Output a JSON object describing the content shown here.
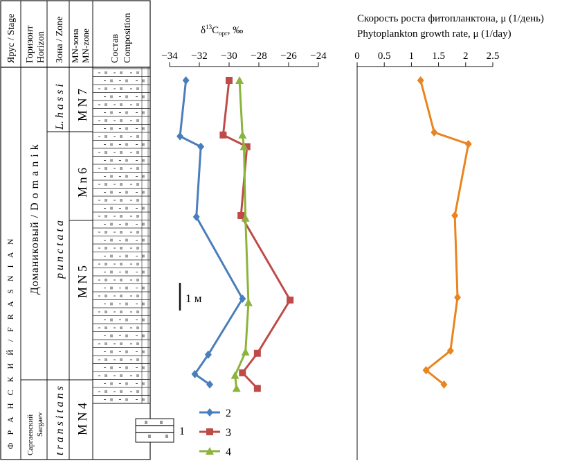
{
  "column_headers": {
    "stage": "Ярус / Stage",
    "horizon_ru": "Горизонт",
    "horizon_en": "Horizon",
    "zone": "Зона / Zone",
    "mnzone_ru": "MN-зона",
    "mnzone_en": "MN-zone",
    "composition_ru": "Состав",
    "composition_en": "Composition"
  },
  "stage_label": "Ф Р А Н С К И Й / F R A S N I A N",
  "horizons": {
    "domanik": "Доманиковый / D o m a n i k",
    "sargaev_ru": "Саргаевский",
    "sargaev_en": "Sargaev"
  },
  "zones": {
    "l_hassi": "L. h a s s i",
    "punctata": "p u n c t a t a",
    "transitans": "t r a n s i t a n s"
  },
  "mn_zones": {
    "mn7": "M N 7",
    "mn6": "M n 6",
    "mn5": "M N 5",
    "mn4": "M N 4"
  },
  "scale_bar_label": "1 м",
  "legend": {
    "composition_key": "1",
    "series_keys": [
      "2",
      "3",
      "4"
    ]
  },
  "chart_data": [
    {
      "type": "line",
      "title_ru": "",
      "xlabel_base": "δ",
      "xlabel_sup": "13",
      "xlabel_main": "C",
      "xlabel_sub": "орг",
      "xlabel_tail": ", ‰",
      "xlim": [
        -34,
        -24
      ],
      "xticks": [
        "−34",
        "−32",
        "−30",
        "−28",
        "−26",
        "−24"
      ],
      "series": [
        {
          "key": "2",
          "color": "#4a7ebb",
          "marker": "diamond",
          "points": [
            {
              "x": -32.9,
              "depth": 0.0
            },
            {
              "x": -33.3,
              "depth": 2.15
            },
            {
              "x": -31.9,
              "depth": 2.55
            },
            {
              "x": -32.2,
              "depth": 5.25
            },
            {
              "x": -29.1,
              "depth": 8.4
            },
            {
              "x": -31.4,
              "depth": 10.55
            },
            {
              "x": -32.3,
              "depth": 11.3
            },
            {
              "x": -31.3,
              "depth": 11.7
            }
          ]
        },
        {
          "key": "3",
          "color": "#be4b48",
          "marker": "square",
          "points": [
            {
              "x": -30.0,
              "depth": 0.0
            },
            {
              "x": -30.4,
              "depth": 2.1
            },
            {
              "x": -28.8,
              "depth": 2.55
            },
            {
              "x": -29.2,
              "depth": 5.2
            },
            {
              "x": -25.9,
              "depth": 8.45
            },
            {
              "x": -28.1,
              "depth": 10.5
            },
            {
              "x": -29.1,
              "depth": 11.25
            },
            {
              "x": -28.1,
              "depth": 11.85
            }
          ]
        },
        {
          "key": "4",
          "color": "#8cb43c",
          "marker": "triangle",
          "points": [
            {
              "x": -29.3,
              "depth": 0.0
            },
            {
              "x": -29.1,
              "depth": 2.1
            },
            {
              "x": -29.0,
              "depth": 2.55
            },
            {
              "x": -28.9,
              "depth": 5.3
            },
            {
              "x": -28.7,
              "depth": 8.55
            },
            {
              "x": -28.9,
              "depth": 10.45
            },
            {
              "x": -29.6,
              "depth": 11.35
            },
            {
              "x": -29.5,
              "depth": 11.85
            }
          ]
        }
      ]
    },
    {
      "type": "line",
      "xlabel_ru": "Скорость роста фитопланктона, μ (1/день)",
      "xlabel_en": "Phytoplankton growth rate, μ (1/day)",
      "xlim": [
        0,
        2.5
      ],
      "xticks": [
        "0",
        "0.5",
        "1",
        "1.5",
        "2",
        "2.5"
      ],
      "series": [
        {
          "color": "#e9841e",
          "marker": "diamond",
          "points": [
            {
              "x": 1.17,
              "depth": 0.0
            },
            {
              "x": 1.42,
              "depth": 2.0
            },
            {
              "x": 2.05,
              "depth": 2.45
            },
            {
              "x": 1.8,
              "depth": 5.2
            },
            {
              "x": 1.85,
              "depth": 8.35
            },
            {
              "x": 1.72,
              "depth": 10.4
            },
            {
              "x": 1.27,
              "depth": 11.15
            },
            {
              "x": 1.6,
              "depth": 11.7
            }
          ]
        }
      ]
    }
  ]
}
